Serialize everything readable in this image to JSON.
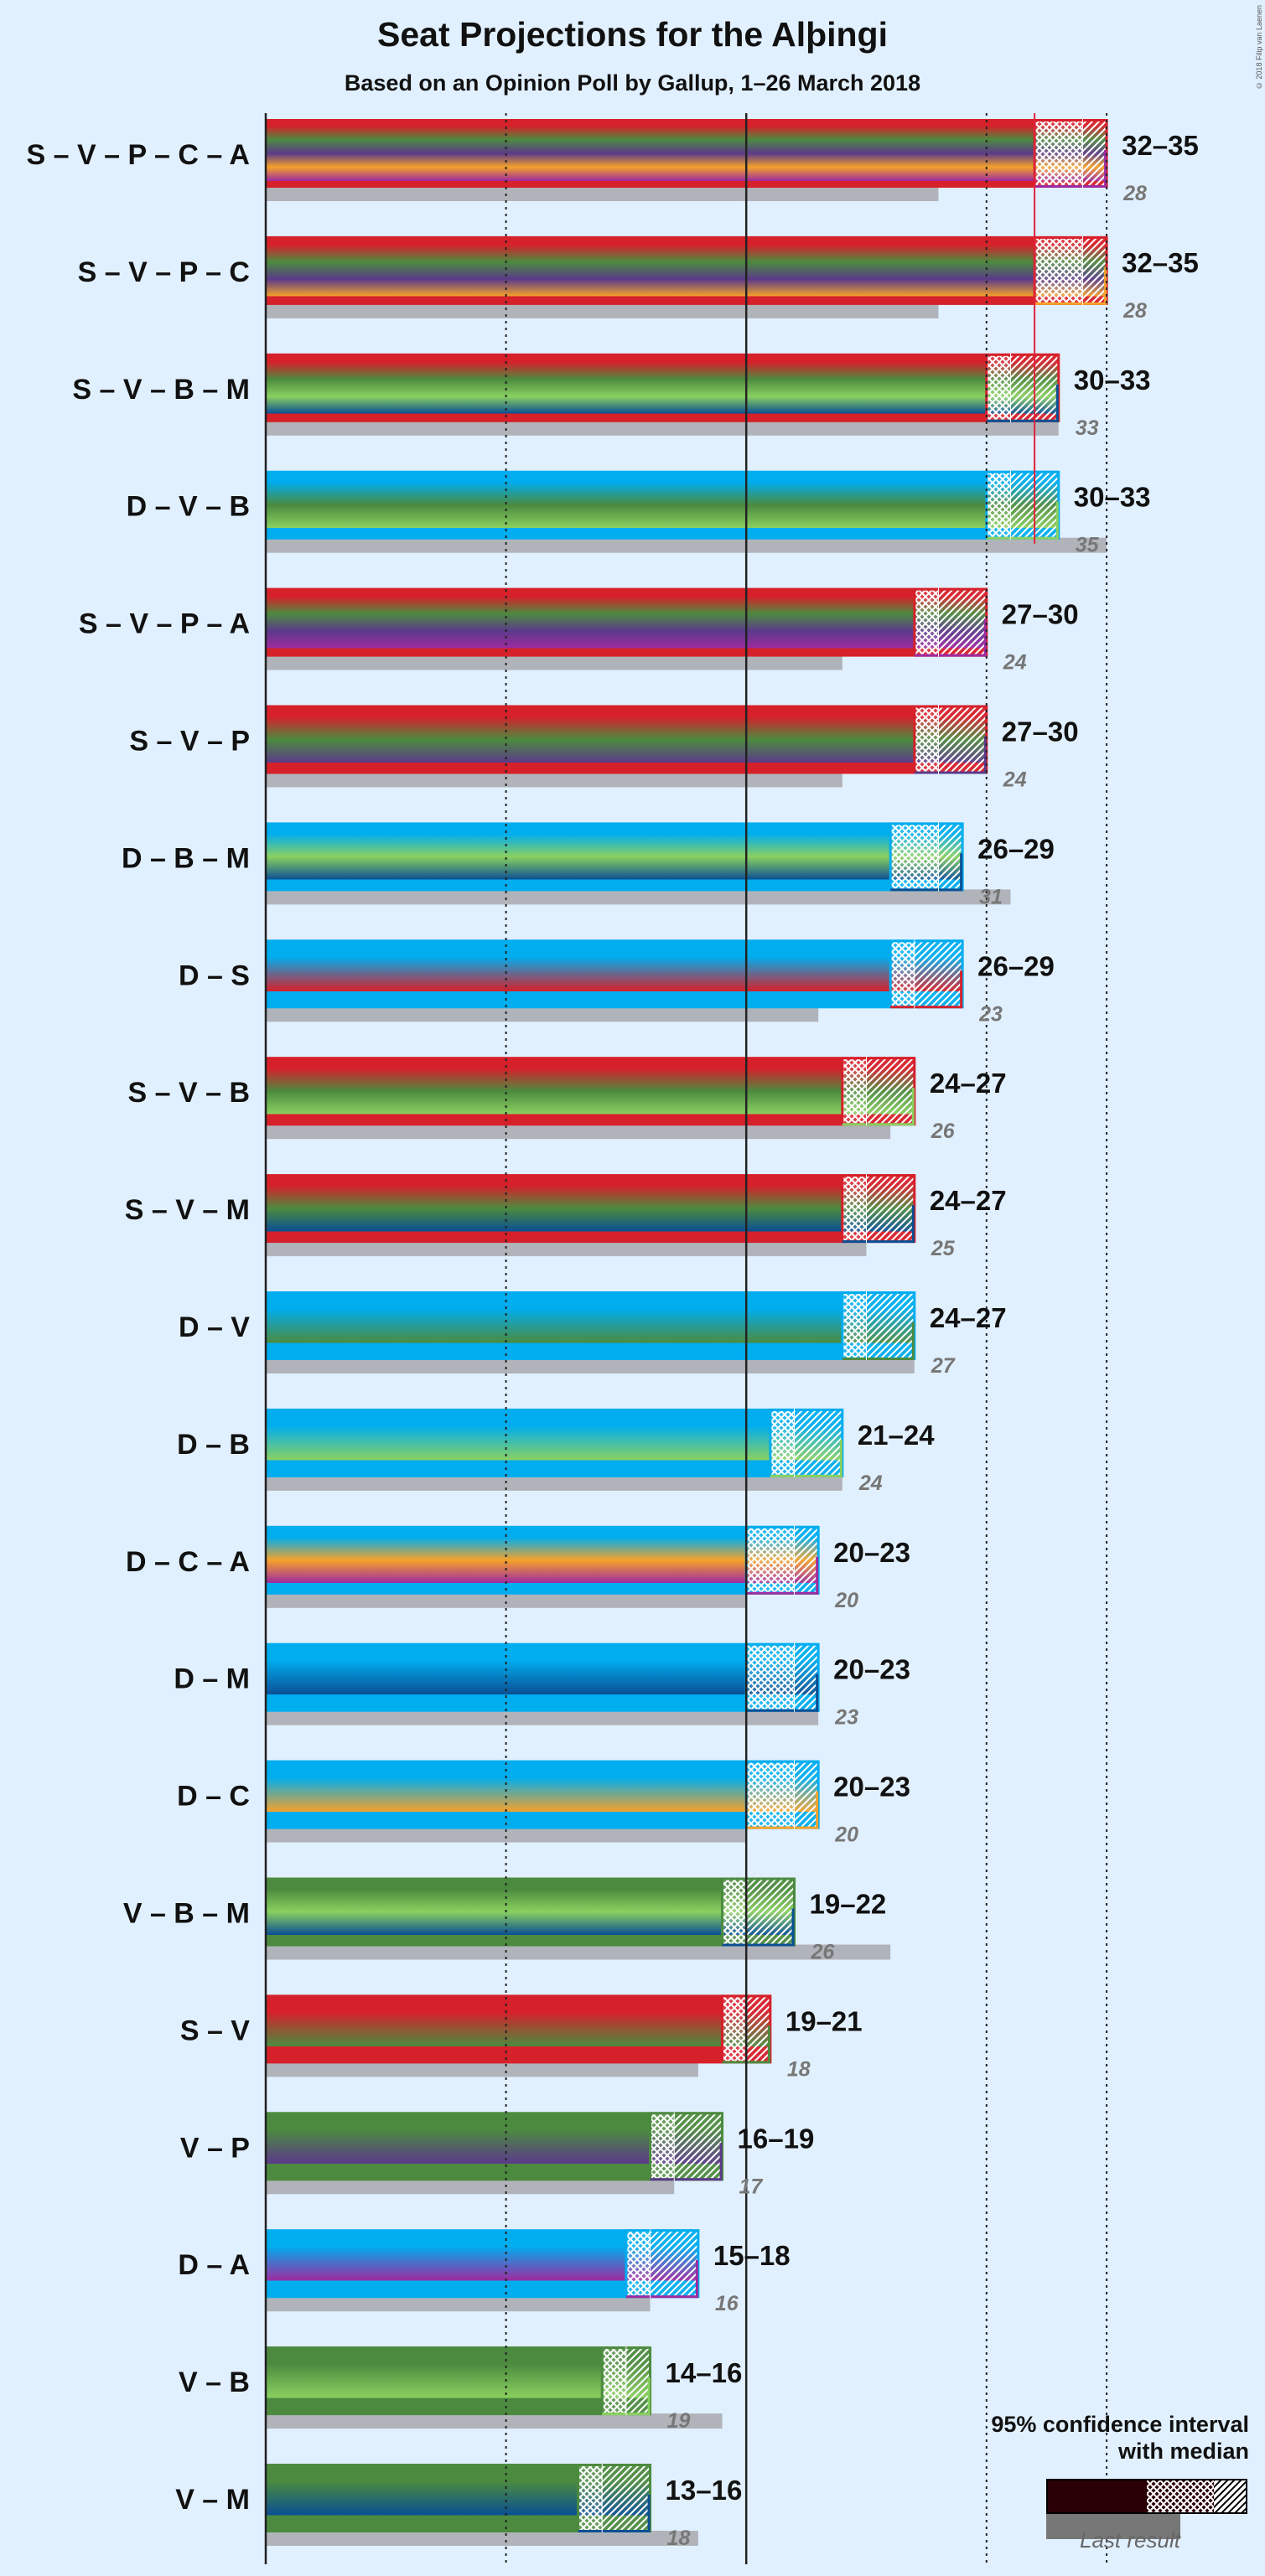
{
  "title": "Seat Projections for the Alþingi",
  "subtitle": "Based on an Opinion Poll by Gallup, 1–26 March 2018",
  "copyright": "© 2018 Filip van Laenen",
  "legend": {
    "line1": "95% confidence interval",
    "line2": "with median",
    "last_result": "Last result"
  },
  "colors": {
    "S": "#d6202a",
    "V": "#4c8b3f",
    "P": "#5b3a8a",
    "C": "#f5a22a",
    "A": "#9e2aa0",
    "B": "#8ad060",
    "M": "#0a4f94",
    "D": "#00adef",
    "majority_line": "#e0223a",
    "last_result_bar": "#b0b4ba",
    "background": "#e1f0ff"
  },
  "chart_data": {
    "type": "bar",
    "orientation": "horizontal",
    "majority": 32,
    "x_gridlines": [
      0,
      10,
      20,
      30,
      35
    ],
    "categories": [
      "S – V – P – C – A",
      "S – V – P – C",
      "S – V – B – M",
      "D – V – B",
      "S – V – P – A",
      "S – V – P",
      "D – B – M",
      "D – S",
      "S – V – B",
      "S – V – M",
      "D – V",
      "D – B",
      "D – C – A",
      "D – M",
      "D – C",
      "V – B – M",
      "S – V",
      "V – P",
      "D – A",
      "V – B",
      "V – M"
    ],
    "series": [
      {
        "name": "",
        "type": "coalition",
        "values": [
          {
            "parties": [
              "S",
              "V",
              "P",
              "C",
              "A"
            ],
            "lo": 32,
            "median": 34,
            "hi": 35,
            "range_label": "32–35",
            "last": 28,
            "last_label": "28"
          },
          {
            "parties": [
              "S",
              "V",
              "P",
              "C"
            ],
            "lo": 32,
            "median": 34,
            "hi": 35,
            "range_label": "32–35",
            "last": 28,
            "last_label": "28"
          },
          {
            "parties": [
              "S",
              "V",
              "B",
              "M"
            ],
            "lo": 30,
            "median": 31,
            "hi": 33,
            "range_label": "30–33",
            "last": 33,
            "last_label": "33"
          },
          {
            "parties": [
              "D",
              "V",
              "B"
            ],
            "lo": 30,
            "median": 31,
            "hi": 33,
            "range_label": "30–33",
            "last": 35,
            "last_label": "35"
          },
          {
            "parties": [
              "S",
              "V",
              "P",
              "A"
            ],
            "lo": 27,
            "median": 28,
            "hi": 30,
            "range_label": "27–30",
            "last": 24,
            "last_label": "24"
          },
          {
            "parties": [
              "S",
              "V",
              "P"
            ],
            "lo": 27,
            "median": 28,
            "hi": 30,
            "range_label": "27–30",
            "last": 24,
            "last_label": "24"
          },
          {
            "parties": [
              "D",
              "B",
              "M"
            ],
            "lo": 26,
            "median": 28,
            "hi": 29,
            "range_label": "26–29",
            "last": 31,
            "last_label": "31"
          },
          {
            "parties": [
              "D",
              "S"
            ],
            "lo": 26,
            "median": 27,
            "hi": 29,
            "range_label": "26–29",
            "last": 23,
            "last_label": "23"
          },
          {
            "parties": [
              "S",
              "V",
              "B"
            ],
            "lo": 24,
            "median": 25,
            "hi": 27,
            "range_label": "24–27",
            "last": 26,
            "last_label": "26"
          },
          {
            "parties": [
              "S",
              "V",
              "M"
            ],
            "lo": 24,
            "median": 25,
            "hi": 27,
            "range_label": "24–27",
            "last": 25,
            "last_label": "25"
          },
          {
            "parties": [
              "D",
              "V"
            ],
            "lo": 24,
            "median": 25,
            "hi": 27,
            "range_label": "24–27",
            "last": 27,
            "last_label": "27"
          },
          {
            "parties": [
              "D",
              "B"
            ],
            "lo": 21,
            "median": 22,
            "hi": 24,
            "range_label": "21–24",
            "last": 24,
            "last_label": "24"
          },
          {
            "parties": [
              "D",
              "C",
              "A"
            ],
            "lo": 20,
            "median": 22,
            "hi": 23,
            "range_label": "20–23",
            "last": 20,
            "last_label": "20"
          },
          {
            "parties": [
              "D",
              "M"
            ],
            "lo": 20,
            "median": 22,
            "hi": 23,
            "range_label": "20–23",
            "last": 23,
            "last_label": "23"
          },
          {
            "parties": [
              "D",
              "C"
            ],
            "lo": 20,
            "median": 22,
            "hi": 23,
            "range_label": "20–23",
            "last": 20,
            "last_label": "20"
          },
          {
            "parties": [
              "V",
              "B",
              "M"
            ],
            "lo": 19,
            "median": 20,
            "hi": 22,
            "range_label": "19–22",
            "last": 26,
            "last_label": "26"
          },
          {
            "parties": [
              "S",
              "V"
            ],
            "lo": 19,
            "median": 20,
            "hi": 21,
            "range_label": "19–21",
            "last": 18,
            "last_label": "18"
          },
          {
            "parties": [
              "V",
              "P"
            ],
            "lo": 16,
            "median": 17,
            "hi": 19,
            "range_label": "16–19",
            "last": 17,
            "last_label": "17"
          },
          {
            "parties": [
              "D",
              "A"
            ],
            "lo": 15,
            "median": 16,
            "hi": 18,
            "range_label": "15–18",
            "last": 16,
            "last_label": "16"
          },
          {
            "parties": [
              "V",
              "B"
            ],
            "lo": 14,
            "median": 15,
            "hi": 16,
            "range_label": "14–16",
            "last": 19,
            "last_label": "19"
          },
          {
            "parties": [
              "V",
              "M"
            ],
            "lo": 13,
            "median": 14,
            "hi": 16,
            "range_label": "13–16",
            "last": 18,
            "last_label": "18"
          }
        ]
      }
    ]
  }
}
